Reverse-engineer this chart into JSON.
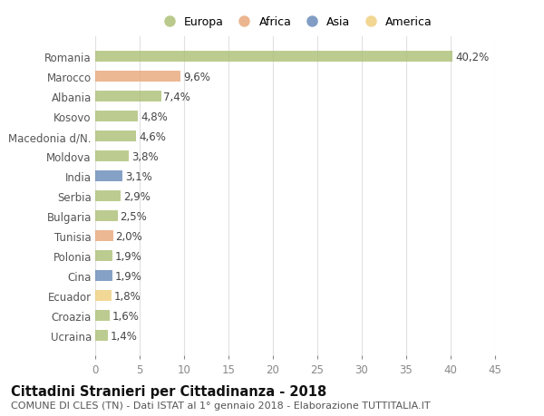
{
  "categories": [
    "Romania",
    "Marocco",
    "Albania",
    "Kosovo",
    "Macedonia d/N.",
    "Moldova",
    "India",
    "Serbia",
    "Bulgaria",
    "Tunisia",
    "Polonia",
    "Cina",
    "Ecuador",
    "Croazia",
    "Ucraina"
  ],
  "values": [
    40.2,
    9.6,
    7.4,
    4.8,
    4.6,
    3.8,
    3.1,
    2.9,
    2.5,
    2.0,
    1.9,
    1.9,
    1.8,
    1.6,
    1.4
  ],
  "labels": [
    "40,2%",
    "9,6%",
    "7,4%",
    "4,8%",
    "4,6%",
    "3,8%",
    "3,1%",
    "2,9%",
    "2,5%",
    "2,0%",
    "1,9%",
    "1,9%",
    "1,8%",
    "1,6%",
    "1,4%"
  ],
  "colors": [
    "#adc178",
    "#e8a87c",
    "#adc178",
    "#adc178",
    "#adc178",
    "#adc178",
    "#6b8cba",
    "#adc178",
    "#adc178",
    "#e8a87c",
    "#adc178",
    "#6b8cba",
    "#f0d080",
    "#adc178",
    "#adc178"
  ],
  "legend_labels": [
    "Europa",
    "Africa",
    "Asia",
    "America"
  ],
  "legend_colors": [
    "#adc178",
    "#e8a87c",
    "#6b8cba",
    "#f0d080"
  ],
  "xlim": [
    0,
    45
  ],
  "xticks": [
    0,
    5,
    10,
    15,
    20,
    25,
    30,
    35,
    40,
    45
  ],
  "title": "Cittadini Stranieri per Cittadinanza - 2018",
  "subtitle": "COMUNE DI CLES (TN) - Dati ISTAT al 1° gennaio 2018 - Elaborazione TUTTITALIA.IT",
  "bg_color": "#ffffff",
  "bar_height": 0.55,
  "label_fontsize": 8.5,
  "title_fontsize": 10.5,
  "subtitle_fontsize": 8.0,
  "ytick_fontsize": 8.5,
  "xtick_fontsize": 8.5
}
